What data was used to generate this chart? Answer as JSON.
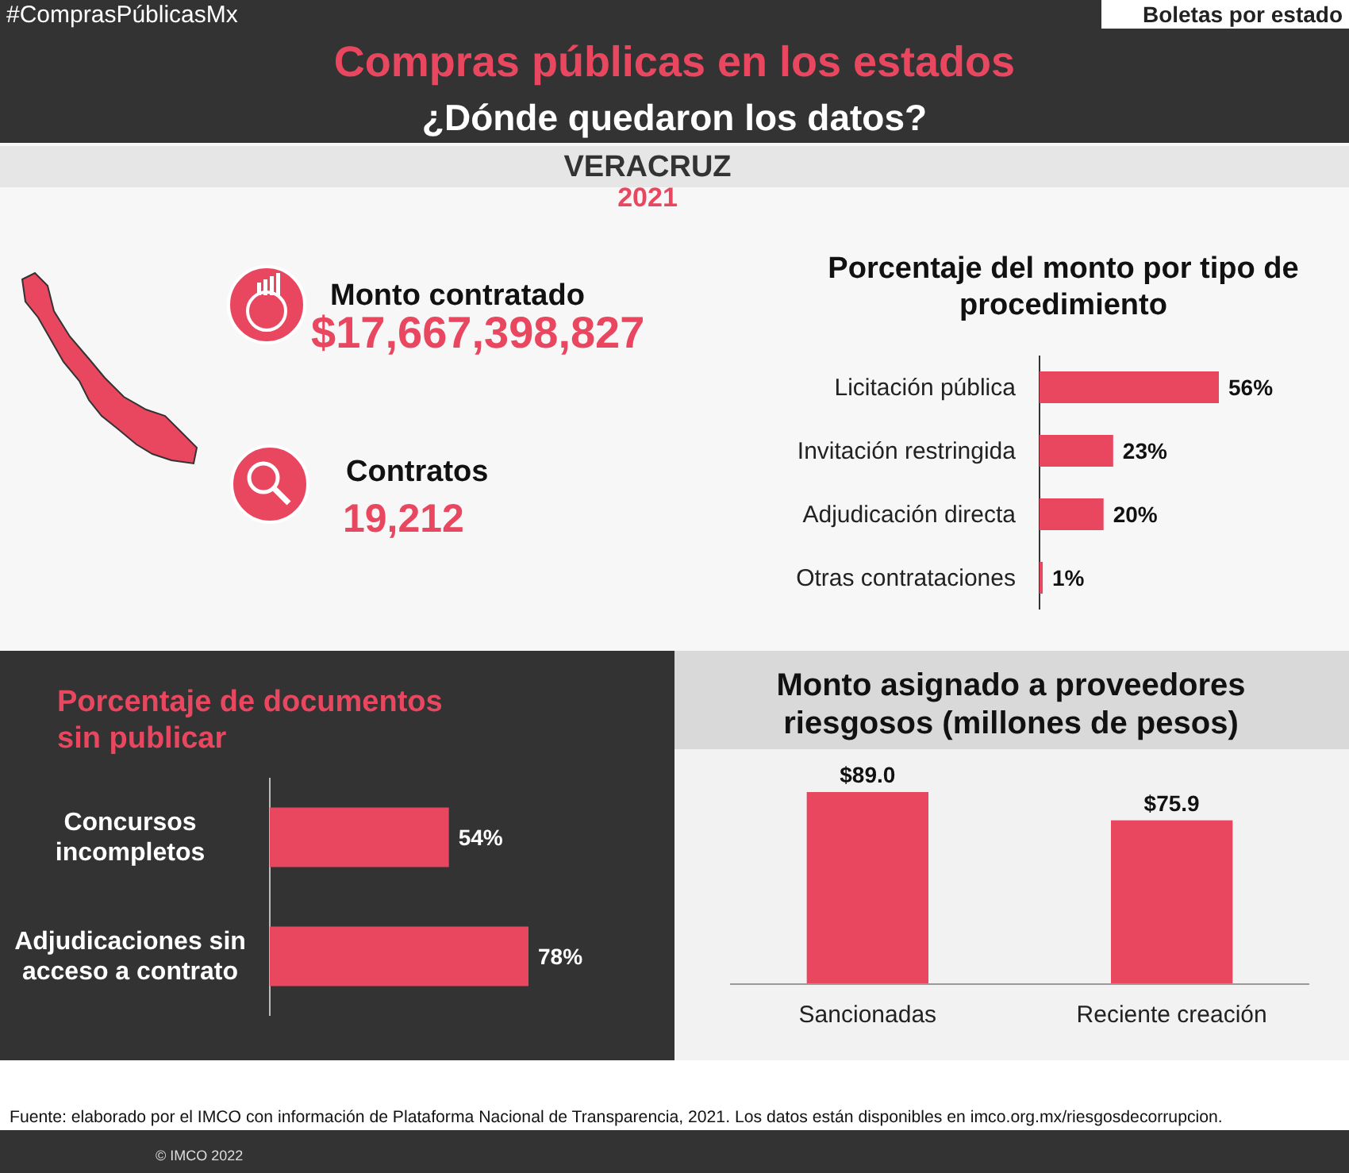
{
  "chart_data": [
    {
      "type": "other",
      "title": "Compras públicas en los estados",
      "subtitle": "¿Dónde quedaron los datos?",
      "annotations": [
        "#ComprasPúblicasMx",
        "Boletas por estado",
        "VERACRUZ",
        "2021",
        "Monto contratado",
        "$17,667,398,827",
        "Contratos",
        "19,212",
        "Fuente:  elaborado por el IMCO con información de Plataforma Nacional de Transparencia, 2021. Los datos están disponibles en imco.org.mx/riesgosdecorrupcion.",
        "© IMCO 2022"
      ]
    },
    {
      "type": "bar",
      "orientation": "horizontal",
      "title": "Porcentaje del monto por tipo de procedimiento",
      "categories": [
        "Licitación pública",
        "Invitación restringida",
        "Adjudicación directa",
        "Otras contrataciones"
      ],
      "values": [
        56,
        23,
        20,
        1
      ],
      "value_labels": [
        "56%",
        "23%",
        "20%",
        "1%"
      ],
      "color": "#e8475f",
      "tick_labels": "y"
    },
    {
      "type": "bar",
      "orientation": "horizontal",
      "title": "Porcentaje de documentos sin publicar",
      "categories": [
        "Concursos incompletos",
        "Adjudicaciones sin acceso a contrato"
      ],
      "values": [
        54,
        78
      ],
      "value_labels": [
        "54%",
        "78%"
      ],
      "color": "#e8475f",
      "tick_labels": "y"
    },
    {
      "type": "bar",
      "title": "Monto asignado a proveedores riesgosos (millones de pesos)",
      "categories": [
        "Sancionadas",
        "Reciente creación"
      ],
      "values": [
        89.0,
        75.9
      ],
      "value_labels": [
        "$89.0",
        "$75.9"
      ],
      "color": "#e8475f",
      "tick_labels": "x"
    }
  ]
}
